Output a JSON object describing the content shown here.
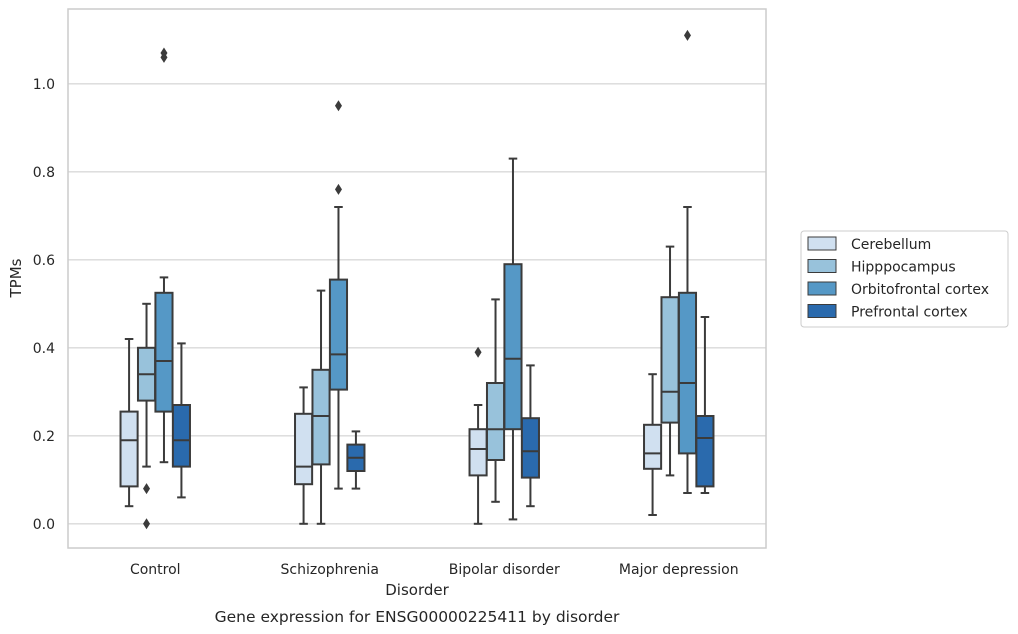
{
  "chart_data": {
    "type": "box",
    "title": "",
    "caption": "Gene expression for ENSG00000225411 by disorder",
    "xlabel": "Disorder",
    "ylabel": "TPMs",
    "ylim": [
      -0.055,
      1.17
    ],
    "yticks": [
      0.0,
      0.2,
      0.4,
      0.6,
      0.8,
      1.0
    ],
    "ytick_labels": [
      "0.0",
      "0.2",
      "0.4",
      "0.6",
      "0.8",
      "1.0"
    ],
    "grid": "horizontal",
    "legend_position": "right",
    "categories": [
      "Control",
      "Schizophrenia",
      "Bipolar disorder",
      "Major depression"
    ],
    "series": [
      {
        "name": "Cerebellum",
        "color": "#d0e0f0",
        "boxes": [
          {
            "whisker_low": 0.04,
            "q1": 0.085,
            "median": 0.19,
            "q3": 0.255,
            "whisker_high": 0.42,
            "outliers": []
          },
          {
            "whisker_low": 0.0,
            "q1": 0.09,
            "median": 0.13,
            "q3": 0.25,
            "whisker_high": 0.31,
            "outliers": []
          },
          {
            "whisker_low": 0.0,
            "q1": 0.11,
            "median": 0.17,
            "q3": 0.215,
            "whisker_high": 0.27,
            "outliers": [
              0.39
            ]
          },
          {
            "whisker_low": 0.02,
            "q1": 0.125,
            "median": 0.16,
            "q3": 0.225,
            "whisker_high": 0.34,
            "outliers": []
          }
        ]
      },
      {
        "name": "Hipppocampus",
        "color": "#98c2db",
        "boxes": [
          {
            "whisker_low": 0.13,
            "q1": 0.28,
            "median": 0.34,
            "q3": 0.4,
            "whisker_high": 0.5,
            "outliers": [
              0.08,
              0.0
            ]
          },
          {
            "whisker_low": 0.0,
            "q1": 0.135,
            "median": 0.245,
            "q3": 0.35,
            "whisker_high": 0.53,
            "outliers": []
          },
          {
            "whisker_low": 0.05,
            "q1": 0.145,
            "median": 0.215,
            "q3": 0.32,
            "whisker_high": 0.51,
            "outliers": []
          },
          {
            "whisker_low": 0.11,
            "q1": 0.23,
            "median": 0.3,
            "q3": 0.515,
            "whisker_high": 0.63,
            "outliers": []
          }
        ]
      },
      {
        "name": "Orbitofrontal cortex",
        "color": "#5598c6",
        "boxes": [
          {
            "whisker_low": 0.14,
            "q1": 0.255,
            "median": 0.37,
            "q3": 0.525,
            "whisker_high": 0.56,
            "outliers": [
              1.06,
              1.07
            ]
          },
          {
            "whisker_low": 0.08,
            "q1": 0.305,
            "median": 0.385,
            "q3": 0.555,
            "whisker_high": 0.72,
            "outliers": [
              0.76,
              0.95
            ]
          },
          {
            "whisker_low": 0.01,
            "q1": 0.215,
            "median": 0.375,
            "q3": 0.59,
            "whisker_high": 0.83,
            "outliers": []
          },
          {
            "whisker_low": 0.07,
            "q1": 0.16,
            "median": 0.32,
            "q3": 0.525,
            "whisker_high": 0.72,
            "outliers": [
              1.11
            ]
          }
        ]
      },
      {
        "name": "Prefrontal cortex",
        "color": "#2a6aad",
        "boxes": [
          {
            "whisker_low": 0.06,
            "q1": 0.13,
            "median": 0.19,
            "q3": 0.27,
            "whisker_high": 0.41,
            "outliers": []
          },
          {
            "whisker_low": 0.08,
            "q1": 0.12,
            "median": 0.15,
            "q3": 0.18,
            "whisker_high": 0.21,
            "outliers": []
          },
          {
            "whisker_low": 0.04,
            "q1": 0.105,
            "median": 0.165,
            "q3": 0.24,
            "whisker_high": 0.36,
            "outliers": []
          },
          {
            "whisker_low": 0.07,
            "q1": 0.085,
            "median": 0.195,
            "q3": 0.245,
            "whisker_high": 0.47,
            "outliers": []
          }
        ]
      }
    ]
  }
}
